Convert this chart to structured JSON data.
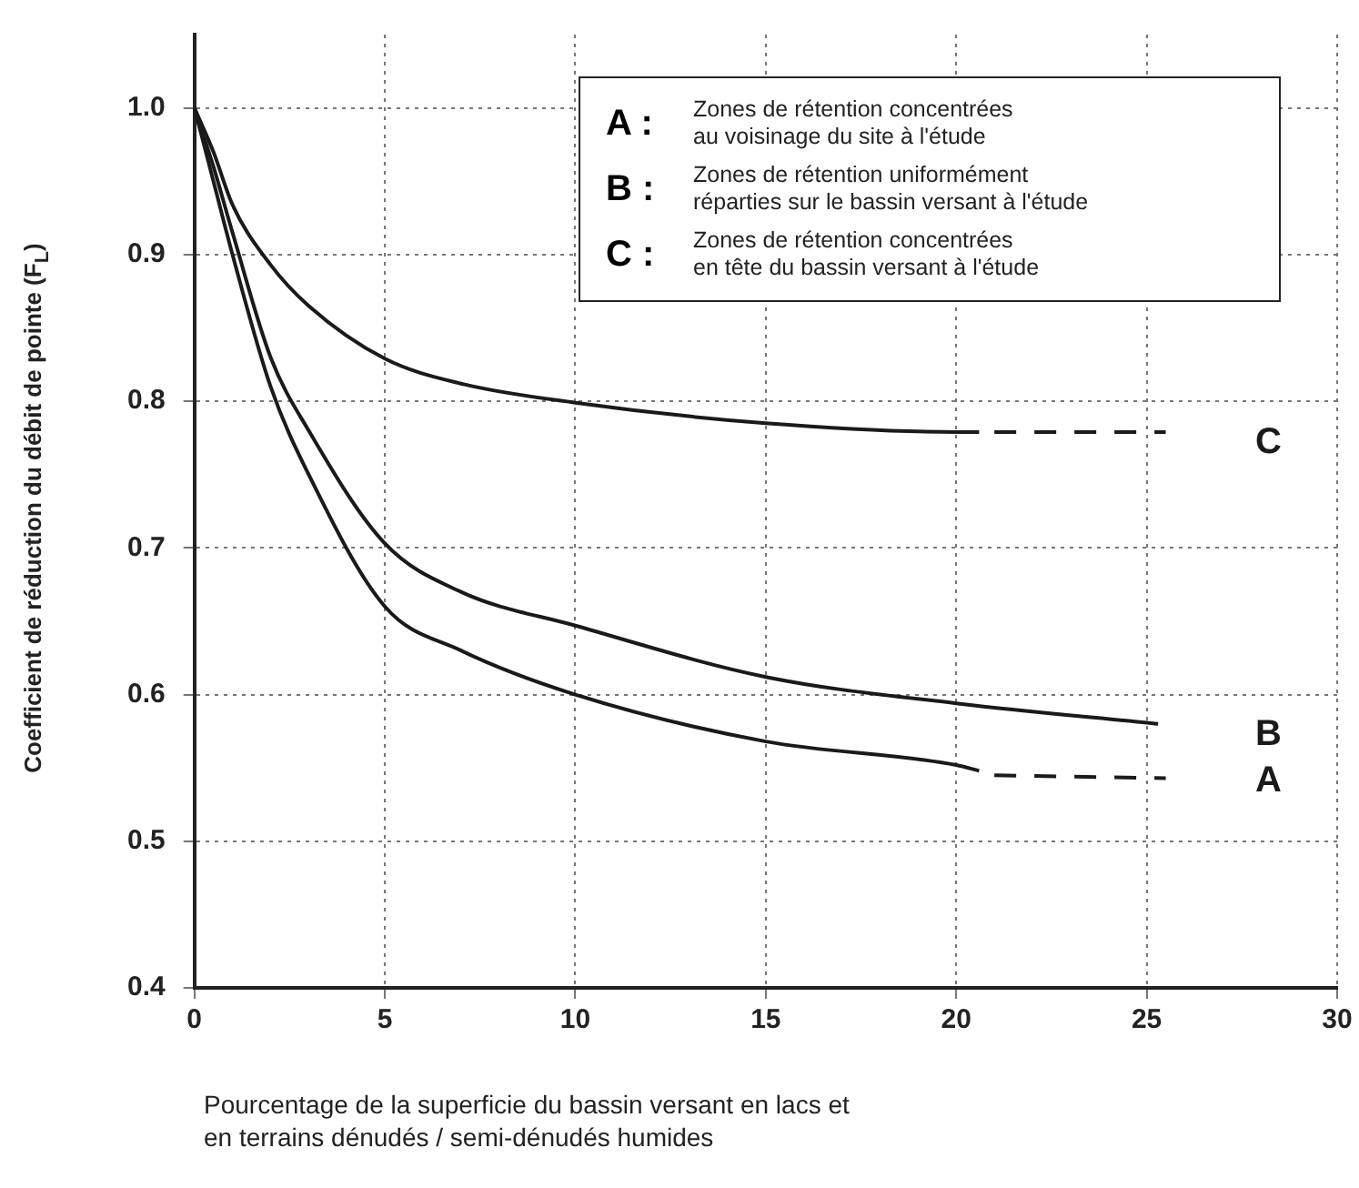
{
  "chart_data": {
    "type": "line",
    "xlabel": "Pourcentage de la superficie du bassin versant en  lacs et\nen terrains dénudés / semi-dénudés humides",
    "ylabel": "Coefficient de réduction du débit de pointe (F$_{L}$)",
    "xlim": [
      0,
      30
    ],
    "xticks": [
      0,
      5,
      10,
      15,
      20,
      25,
      30
    ],
    "ylim": [
      0.4,
      1.05
    ],
    "yticks": [
      0.4,
      0.5,
      0.6,
      0.7,
      0.8,
      0.9,
      {
        "value": 1,
        "label": "1.0"
      }
    ],
    "grid": true,
    "legend": false,
    "marker": "none",
    "series": [
      {
        "name": "A",
        "color": "#1a1a1a",
        "x": [
          0,
          0.5,
          1,
          2,
          3,
          5,
          7,
          10,
          15,
          20,
          20.6
        ],
        "values": [
          1,
          0.95,
          0.9,
          0.81,
          0.75,
          0.66,
          0.63,
          0.6,
          0.568,
          0.552,
          0.548
        ]
      },
      {
        "color": "#1a1a1a",
        "line_style": "dashed",
        "x": [
          21,
          25.5
        ],
        "values": [
          0.545,
          0.543
        ]
      },
      {
        "name": "B",
        "color": "#1a1a1a",
        "x": [
          0,
          0.5,
          1,
          2,
          3,
          5,
          7,
          10,
          15,
          20,
          25.3
        ],
        "values": [
          1,
          0.96,
          0.915,
          0.83,
          0.78,
          0.703,
          0.67,
          0.647,
          0.612,
          0.594,
          0.58
        ]
      },
      {
        "name": "C",
        "color": "#1a1a1a",
        "x": [
          0,
          0.5,
          1,
          2,
          3,
          5,
          7,
          10,
          15,
          20,
          20.6
        ],
        "values": [
          1,
          0.97,
          0.934,
          0.893,
          0.865,
          0.829,
          0.812,
          0.799,
          0.785,
          0.779,
          0.779
        ]
      },
      {
        "color": "#1a1a1a",
        "line_style": "dashed",
        "x": [
          21,
          25.5
        ],
        "values": [
          0.779,
          0.779
        ]
      }
    ],
    "annotations": [
      "A :",
      "Zones de rétention concentrées\nau voisinage du site à l'étude",
      "B :",
      "Zones de rétention uniformément\nréparties sur le bassin versant à l'étude",
      "C :",
      "Zones de rétention concentrées\nen tête du bassin versant à l'étude"
    ]
  }
}
